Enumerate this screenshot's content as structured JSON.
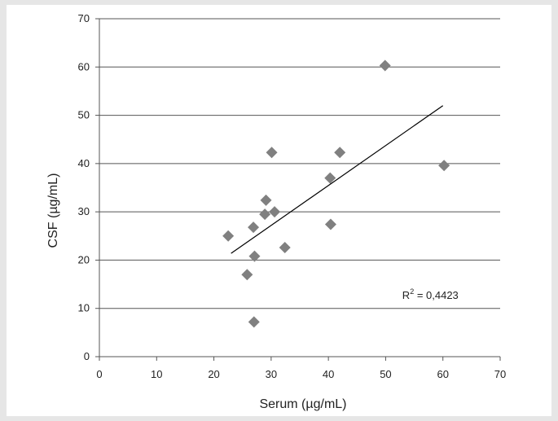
{
  "chart_data": {
    "type": "scatter",
    "title": "",
    "xlabel": "Serum (µg/mL)",
    "ylabel": "CSF (µg/mL)",
    "xlim": [
      0,
      70
    ],
    "ylim": [
      0,
      70
    ],
    "xticks": [
      "0",
      "10",
      "20",
      "30",
      "40",
      "50",
      "60",
      "70"
    ],
    "yticks": [
      "0",
      "10",
      "20",
      "30",
      "40",
      "50",
      "60",
      "70"
    ],
    "grid": "horizontal",
    "legend": "none",
    "marker": "diamond",
    "point_color": "#808080",
    "series": [
      {
        "x": [
          22.5,
          25.8,
          26.9,
          27.0,
          27.1,
          28.9,
          29.1,
          30.1,
          30.6,
          32.4,
          40.3,
          40.4,
          42.0,
          49.9,
          60.2
        ],
        "y": [
          25.0,
          17.0,
          26.8,
          7.2,
          20.8,
          29.5,
          32.4,
          42.3,
          30.0,
          22.6,
          37.0,
          27.4,
          42.3,
          60.3,
          39.6
        ]
      }
    ],
    "trendline": {
      "x": [
        23,
        60
      ],
      "y": [
        21.4,
        52.0
      ],
      "color": "#000000"
    },
    "annotation": {
      "base": "R",
      "sup": "2",
      "rest": " = 0,4423"
    }
  }
}
